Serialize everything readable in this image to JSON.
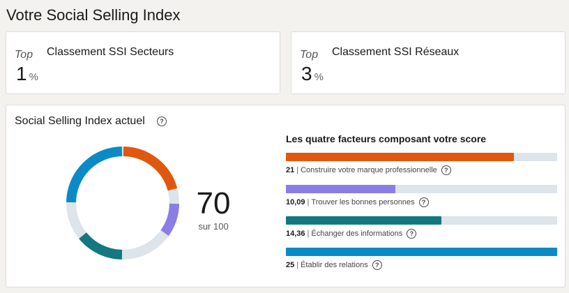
{
  "page": {
    "title": "Votre Social Selling Index"
  },
  "rankings": [
    {
      "top_label": "Top",
      "title": "Classement SSI Secteurs",
      "value": "1",
      "unit": "%"
    },
    {
      "top_label": "Top",
      "title": "Classement SSI Réseaux",
      "value": "3",
      "unit": "%"
    }
  ],
  "ssi": {
    "title": "Social Selling Index actuel",
    "help_icon": "?",
    "score": "70",
    "score_sub": "sur 100",
    "factors_heading": "Les quatre facteurs composant votre score",
    "max_per_factor": 25,
    "factors": [
      {
        "score": "21",
        "value": 21,
        "name": "Construire votre marque professionnelle",
        "color": "#e0580e"
      },
      {
        "score": "10,09",
        "value": 10.09,
        "name": "Trouver les bonnes personnes",
        "color": "#8a7de6"
      },
      {
        "score": "14,36",
        "value": 14.36,
        "name": "Échanger des informations",
        "color": "#137880"
      },
      {
        "score": "25",
        "value": 25,
        "name": "Établir des relations",
        "color": "#0a8bc7"
      }
    ],
    "donut_track_color": "#dde4ea"
  }
}
